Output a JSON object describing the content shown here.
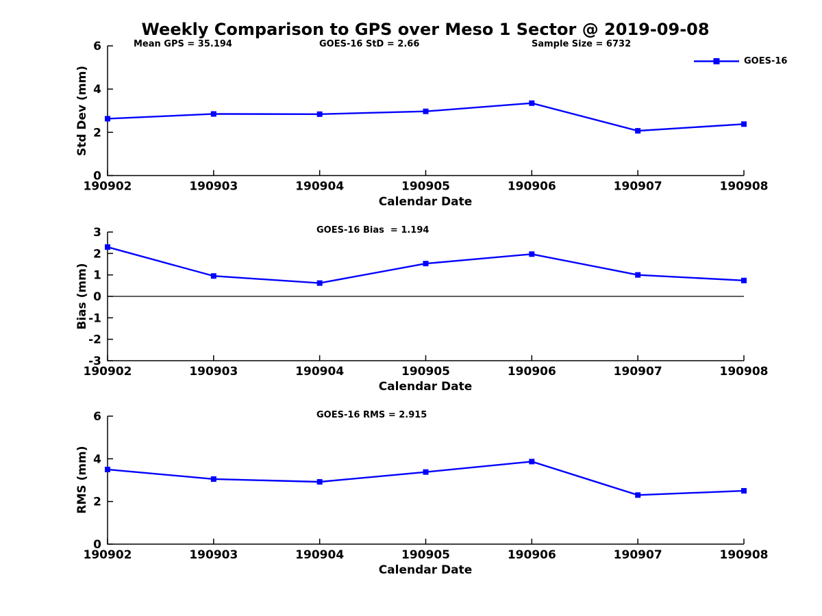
{
  "page": {
    "title": "Weekly Comparison to GPS over Meso 1 Sector @ 2019-09-08",
    "background": "#ffffff"
  },
  "colors": {
    "series": "#0000ff",
    "axis": "#000000",
    "text": "#000000",
    "zero_line": "#000000"
  },
  "legend": {
    "label": "GOES-16"
  },
  "annotations": {
    "mean_gps": "Mean GPS = 35.194",
    "goes16_std": "GOES-16 StD = 2.66",
    "sample_size": "Sample Size = 6732",
    "goes16_bias": "GOES-16 Bias  = 1.194",
    "goes16_rms": "GOES-16 RMS = 2.915"
  },
  "chart_data": [
    {
      "type": "line",
      "title": "Weekly Comparison to GPS over Meso 1 Sector @ 2019-09-08",
      "xlabel": "Calendar Date",
      "ylabel": "Std Dev (mm)",
      "categories": [
        "190902",
        "190903",
        "190904",
        "190905",
        "190906",
        "190907",
        "190908"
      ],
      "series": [
        {
          "name": "GOES-16",
          "values": [
            2.63,
            2.85,
            2.84,
            2.97,
            3.35,
            2.07,
            2.38
          ]
        }
      ],
      "ylim": [
        0,
        6
      ],
      "yticks": [
        0,
        2,
        4,
        6
      ],
      "grid": false,
      "zero_line": false,
      "legend_position": "top-right-outside",
      "marker": "square"
    },
    {
      "type": "line",
      "title": "",
      "xlabel": "Calendar Date",
      "ylabel": "Bias (mm)",
      "categories": [
        "190902",
        "190903",
        "190904",
        "190905",
        "190906",
        "190907",
        "190908"
      ],
      "series": [
        {
          "name": "GOES-16",
          "values": [
            2.3,
            0.95,
            0.62,
            1.53,
            1.97,
            1.0,
            0.74
          ]
        }
      ],
      "ylim": [
        -3,
        3
      ],
      "yticks": [
        -3,
        -2,
        -1,
        0,
        1,
        2,
        3
      ],
      "grid": false,
      "zero_line": true,
      "legend_position": "none",
      "marker": "square"
    },
    {
      "type": "line",
      "title": "",
      "xlabel": "Calendar Date",
      "ylabel": "RMS (mm)",
      "categories": [
        "190902",
        "190903",
        "190904",
        "190905",
        "190906",
        "190907",
        "190908"
      ],
      "series": [
        {
          "name": "GOES-16",
          "values": [
            3.5,
            3.05,
            2.92,
            3.38,
            3.87,
            2.3,
            2.5
          ]
        }
      ],
      "ylim": [
        0,
        6
      ],
      "yticks": [
        0,
        2,
        4,
        6
      ],
      "grid": false,
      "zero_line": false,
      "legend_position": "none",
      "marker": "square"
    }
  ]
}
